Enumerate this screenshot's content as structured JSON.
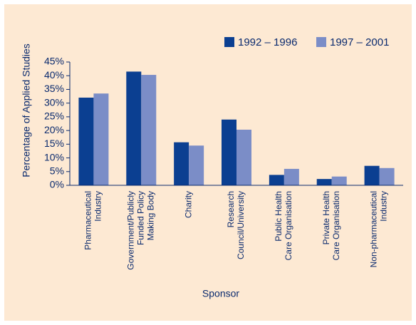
{
  "chart_data": {
    "type": "bar",
    "y_label": "Percentage of Applied Studies",
    "x_label": "Sponsor",
    "categories": [
      [
        "Pharmaceutical",
        "Industry"
      ],
      [
        "Government/Publicly",
        "Funded Policy",
        "Making Body"
      ],
      [
        "Charity"
      ],
      [
        "Research",
        "Council/University"
      ],
      [
        "Public Health",
        "Care Organisation"
      ],
      [
        "Private Health",
        "Care Organisation"
      ],
      [
        "Non-pharmaceutical",
        "Industry"
      ]
    ],
    "series": [
      {
        "name": "1992 – 1996",
        "color": "#0b3f91",
        "values": [
          32,
          41.5,
          15.7,
          24,
          3.8,
          2.3,
          7.1
        ]
      },
      {
        "name": "1997 – 2001",
        "color": "#7b8dc7",
        "values": [
          33.5,
          40.3,
          14.5,
          20.3,
          6,
          3.2,
          6.3
        ]
      }
    ],
    "ylim": [
      0,
      45
    ],
    "yticks": [
      {
        "value": 0,
        "label": "0%"
      },
      {
        "value": 5,
        "label": "5%"
      },
      {
        "value": 10,
        "label": "10%"
      },
      {
        "value": 15,
        "label": "15%"
      },
      {
        "value": 20,
        "label": "20%"
      },
      {
        "value": 25,
        "label": "25%"
      },
      {
        "value": 30,
        "label": "30%"
      },
      {
        "value": 35,
        "label": "35%"
      },
      {
        "value": 40,
        "label": "40%"
      },
      {
        "value": 45,
        "label": "45%"
      }
    ],
    "legend": "top-right"
  }
}
